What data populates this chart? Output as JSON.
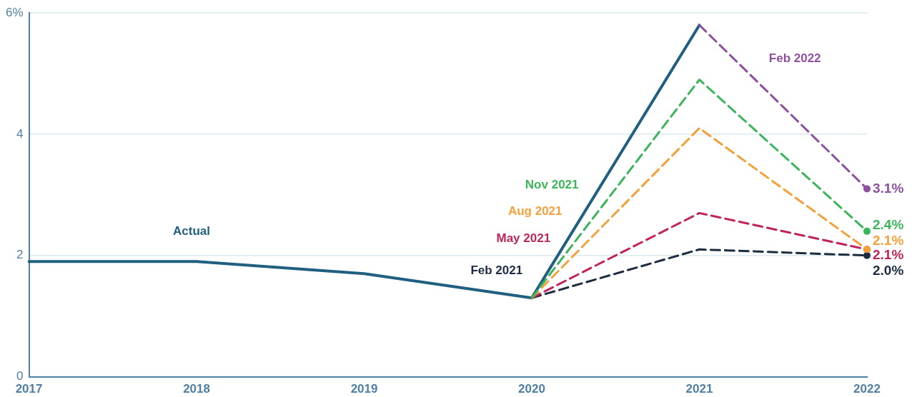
{
  "chart_data": {
    "type": "line",
    "categories": [
      "2017",
      "2018",
      "2019",
      "2020",
      "2021",
      "2022"
    ],
    "ylim": [
      0,
      6
    ],
    "yticks": [
      0,
      2,
      4,
      {
        "value": 6,
        "label": "6%"
      }
    ],
    "grid": "y",
    "legend": false,
    "series": [
      {
        "name": "Actual",
        "color": "#215f80",
        "values": [
          1.9,
          1.9,
          1.7,
          1.3,
          5.8,
          null
        ],
        "line_style": "solid"
      },
      {
        "name": "Feb 2021",
        "color": "#1c2b3f",
        "values": [
          null,
          null,
          null,
          1.3,
          2.1,
          2.0
        ],
        "line_style": "dashed",
        "value_labels": [
          null,
          null,
          null,
          null,
          null,
          "2.0%"
        ]
      },
      {
        "name": "May 2021",
        "color": "#c0245a",
        "values": [
          null,
          null,
          null,
          1.3,
          2.7,
          2.1
        ],
        "line_style": "dashed",
        "value_labels": [
          null,
          null,
          null,
          null,
          null,
          "2.1%"
        ]
      },
      {
        "name": "Aug 2021",
        "color": "#f5a13a",
        "values": [
          null,
          null,
          null,
          1.3,
          4.1,
          2.1
        ],
        "line_style": "dashed",
        "value_labels": [
          null,
          null,
          null,
          null,
          null,
          "2.1%"
        ]
      },
      {
        "name": "Nov 2021",
        "color": "#3bb55a",
        "values": [
          null,
          null,
          null,
          1.3,
          4.9,
          2.4
        ],
        "line_style": "dashed",
        "value_labels": [
          null,
          null,
          null,
          null,
          null,
          "2.4%"
        ]
      },
      {
        "name": "Feb 2022",
        "color": "#8e4fa0",
        "values": [
          null,
          null,
          null,
          null,
          5.8,
          3.1
        ],
        "line_style": "dashed",
        "value_labels": [
          null,
          null,
          null,
          null,
          null,
          "3.1%"
        ]
      }
    ]
  }
}
